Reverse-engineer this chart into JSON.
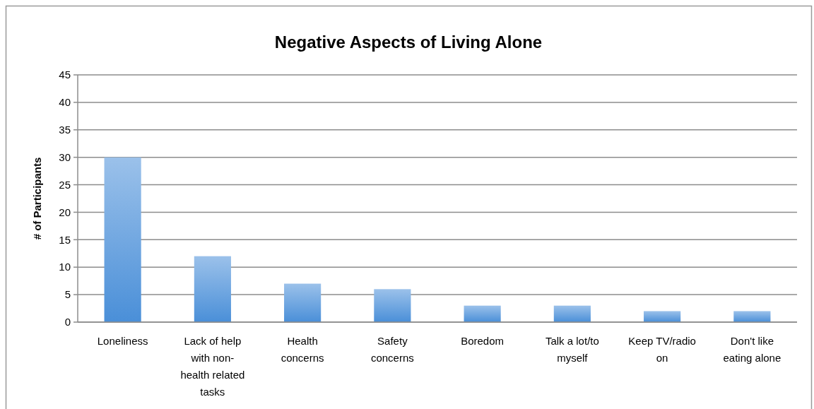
{
  "chart_data": {
    "type": "bar",
    "title": "Negative Aspects of Living Alone",
    "ylabel": "# of Participants",
    "categories": [
      "Loneliness",
      "Lack of help with non-health related tasks",
      "Health concerns",
      "Safety concerns",
      "Boredom",
      "Talk a lot/to myself",
      "Keep TV/radio on",
      "Don't like eating alone"
    ],
    "values": [
      30,
      12,
      7,
      6,
      3,
      3,
      2,
      2
    ],
    "color": "#4a8fd8",
    "ylim": [
      0,
      45
    ],
    "yticks": [
      0,
      5,
      10,
      15,
      20,
      25,
      30,
      35,
      40,
      45
    ],
    "grid": "y"
  }
}
